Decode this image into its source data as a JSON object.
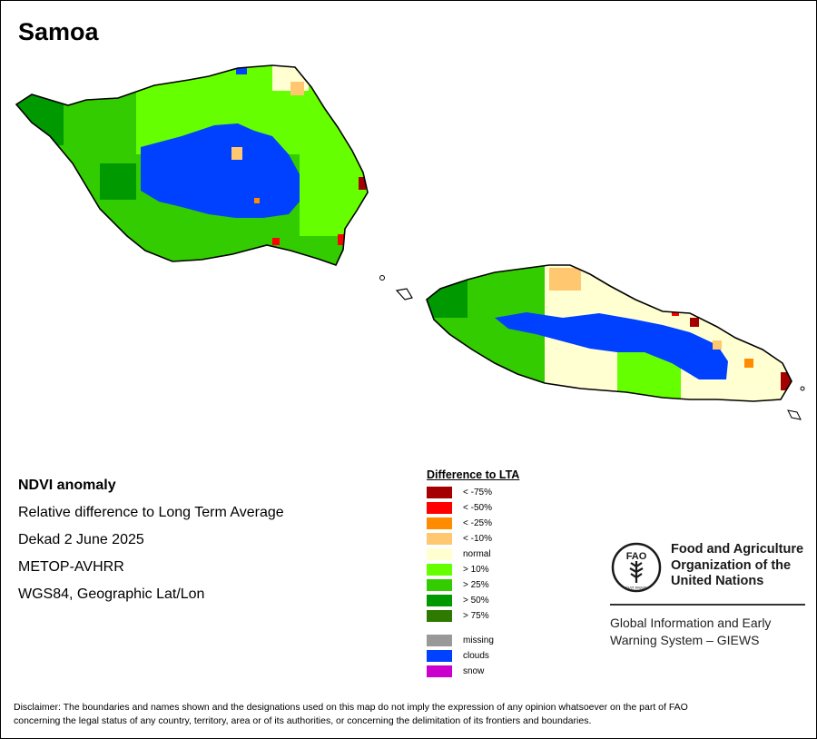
{
  "title": "Samoa",
  "info": {
    "heading": "NDVI anomaly",
    "line1": "Relative difference to Long Term Average",
    "line2": "Dekad 2 June 2025",
    "line3": "METOP-AVHRR",
    "line4": "WGS84, Geographic Lat/Lon"
  },
  "legend": {
    "title": "Difference to LTA",
    "items": [
      {
        "label": "< -75%",
        "color": "#a50000"
      },
      {
        "label": "< -50%",
        "color": "#ff0000"
      },
      {
        "label": "< -25%",
        "color": "#ff8c00"
      },
      {
        "label": "< -10%",
        "color": "#ffc870"
      },
      {
        "label": "normal",
        "color": "#ffffd2"
      },
      {
        "label": "> 10%",
        "color": "#66ff00"
      },
      {
        "label": "> 25%",
        "color": "#33cc00"
      },
      {
        "label": "> 50%",
        "color": "#009900"
      },
      {
        "label": "> 75%",
        "color": "#2e7a00"
      }
    ],
    "extra": [
      {
        "label": "missing",
        "color": "#999999"
      },
      {
        "label": "clouds",
        "color": "#0040ff"
      },
      {
        "label": "snow",
        "color": "#cc00cc"
      }
    ]
  },
  "fao": {
    "name_line1": "Food and Agriculture",
    "name_line2": "Organization of the",
    "name_line3": "United Nations",
    "logo_text": "FAO",
    "logo_motto": "FIAT PANIS",
    "giews_line1": "Global Information and Early",
    "giews_line2": "Warning System – GIEWS"
  },
  "disclaimer": {
    "line1": "Disclaimer: The boundaries and names shown and the designations used on this map do not imply the expression of any opinion whatsoever on the part of FAO",
    "line2": "concerning the legal status of any country, territory, area or of its authorities, or concerning the delimitation of its frontiers and boundaries."
  }
}
